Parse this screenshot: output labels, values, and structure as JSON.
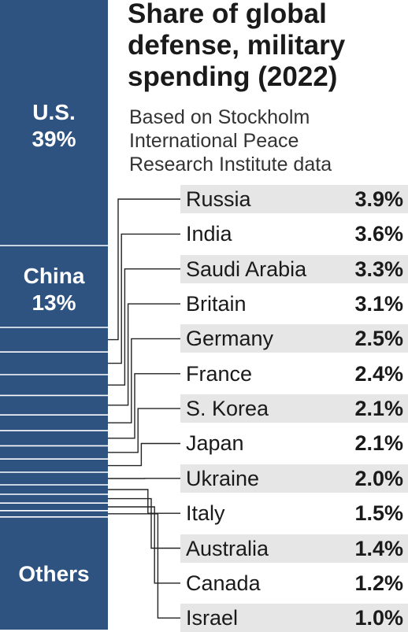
{
  "colors": {
    "bar": "#2f5381",
    "separator": "#ffffff",
    "row_shade": "#e6e6e6",
    "leader": "#222222"
  },
  "header": {
    "title_lines": [
      "Share of global",
      "defense, military",
      "spending (2022)"
    ],
    "subtitle_lines": [
      "Based on Stockholm",
      "International Peace",
      "Research Institute data"
    ]
  },
  "chart_data": {
    "type": "bar",
    "orientation": "stacked-vertical",
    "title": "Share of global defense, military spending (2022)",
    "subtitle": "Based on Stockholm International Peace Research Institute data",
    "unit": "%",
    "segments": [
      {
        "name": "U.S.",
        "value": 39,
        "label": "39%"
      },
      {
        "name": "China",
        "value": 13,
        "label": "13%"
      },
      {
        "name": "Russia",
        "value": 3.9,
        "label": "3.9%"
      },
      {
        "name": "India",
        "value": 3.6,
        "label": "3.6%"
      },
      {
        "name": "Saudi Arabia",
        "value": 3.3,
        "label": "3.3%"
      },
      {
        "name": "Britain",
        "value": 3.1,
        "label": "3.1%"
      },
      {
        "name": "Germany",
        "value": 2.5,
        "label": "2.5%"
      },
      {
        "name": "France",
        "value": 2.4,
        "label": "2.4%"
      },
      {
        "name": "S. Korea",
        "value": 2.1,
        "label": "2.1%"
      },
      {
        "name": "Japan",
        "value": 2.1,
        "label": "2.1%"
      },
      {
        "name": "Ukraine",
        "value": 2.0,
        "label": "2.0%"
      },
      {
        "name": "Italy",
        "value": 1.5,
        "label": "1.5%"
      },
      {
        "name": "Australia",
        "value": 1.4,
        "label": "1.4%"
      },
      {
        "name": "Canada",
        "value": 1.2,
        "label": "1.2%"
      },
      {
        "name": "Israel",
        "value": 1.0,
        "label": "1.0%"
      },
      {
        "name": "Others",
        "label": ""
      }
    ],
    "in_bar_labels": [
      "U.S.",
      "China",
      "Others"
    ],
    "listed_countries": [
      "Russia",
      "India",
      "Saudi Arabia",
      "Britain",
      "Germany",
      "France",
      "S. Korea",
      "Japan",
      "Ukraine",
      "Italy",
      "Australia",
      "Canada",
      "Israel"
    ],
    "legend": "right",
    "grid": false
  }
}
